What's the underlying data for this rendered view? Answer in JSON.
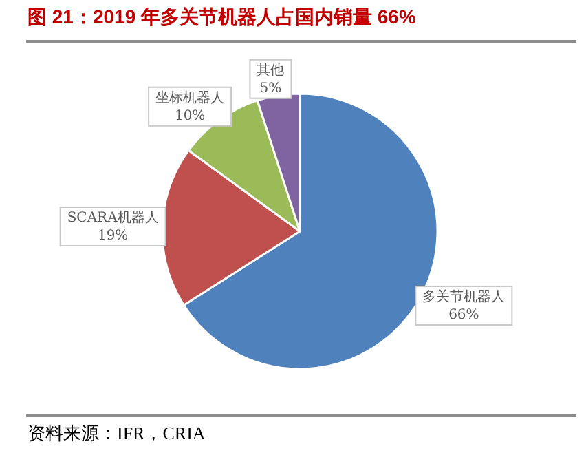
{
  "chart_data": {
    "type": "pie",
    "title": "图 21：2019 年多关节机器人占国内销量 66%",
    "categories": [
      "多关节机器人",
      "SCARA机器人",
      "坐标机器人",
      "其他"
    ],
    "values": [
      66,
      19,
      10,
      5
    ],
    "value_labels": [
      "66%",
      "19%",
      "10%",
      "5%"
    ],
    "colors": [
      "#4f81bd",
      "#c0504d",
      "#9bbb59",
      "#8064a2"
    ],
    "legend": false,
    "annotations": [
      "资料来源：IFR，CRIA"
    ]
  }
}
